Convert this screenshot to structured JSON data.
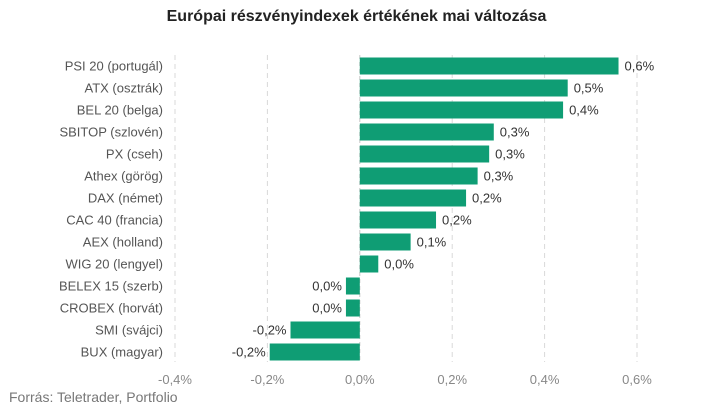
{
  "chart_data": {
    "type": "bar",
    "orientation": "horizontal",
    "title": "Európai részvényindexek értékének mai változása",
    "categories": [
      "PSI 20 (portugál)",
      "ATX (osztrák)",
      "BEL 20 (belga)",
      "SBITOP (szlovén)",
      "PX (cseh)",
      "Athex (görög)",
      "DAX (német)",
      "CAC 40 (francia)",
      "AEX (holland)",
      "WIG 20 (lengyel)",
      "BELEX 15 (szerb)",
      "CROBEX (horvát)",
      "SMI (svájci)",
      "BUX (magyar)"
    ],
    "values": [
      0.56,
      0.45,
      0.44,
      0.29,
      0.28,
      0.255,
      0.23,
      0.165,
      0.11,
      0.04,
      -0.03,
      -0.03,
      -0.15,
      -0.195
    ],
    "data_labels": [
      "0,6%",
      "0,5%",
      "0,4%",
      "0,3%",
      "0,3%",
      "0,3%",
      "0,2%",
      "0,2%",
      "0,1%",
      "0,0%",
      "0,0%",
      "0,0%",
      "-0,2%",
      "-0,2%"
    ],
    "xlim": [
      -0.4,
      0.6
    ],
    "x_ticks": [
      -0.4,
      -0.2,
      0.0,
      0.2,
      0.4,
      0.6
    ],
    "x_tick_labels": [
      "-0,4%",
      "-0,2%",
      "0,0%",
      "0,2%",
      "0,4%",
      "0,6%"
    ],
    "grid": "vertical, dashed",
    "bar_color": "#0f9d74",
    "source": "Forrás: Teletrader, Portfolio"
  }
}
